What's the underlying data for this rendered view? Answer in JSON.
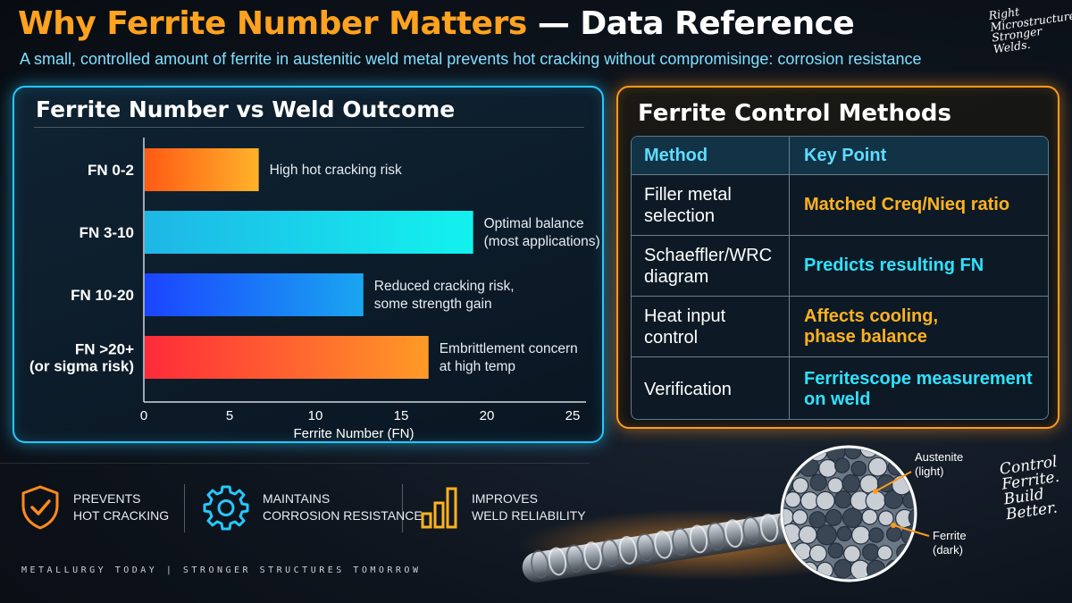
{
  "header": {
    "title_part1": "Why Ferrite Number Matters",
    "title_part2": "— Data Reference",
    "subtitle": "A small, controlled amount of ferrite in austenitic weld metal prevents hot cracking without compromisinge: corrosion resistance"
  },
  "taglines": {
    "top": [
      "Right",
      "Microstructure",
      "Stronger",
      "Welds."
    ],
    "bottom": [
      "Control",
      "Ferrite.",
      "Build",
      "Better."
    ]
  },
  "chart_data": {
    "type": "bar",
    "orientation": "horizontal",
    "title": "Ferrite Number vs Weld Outcome",
    "xlabel": "Ferrite Number (FN)",
    "ylabel": "",
    "xlim": [
      0,
      25
    ],
    "xticks": [
      0,
      5,
      10,
      15,
      20,
      25
    ],
    "categories": [
      {
        "label": [
          "FN 0-2"
        ],
        "value": 6.7,
        "note": [
          "High hot cracking risk"
        ],
        "colors": [
          "#ff5a14",
          "#ffb22a"
        ]
      },
      {
        "label": [
          "FN 3-10"
        ],
        "value": 19.2,
        "note": [
          "Optimal balance",
          "(most applications)"
        ],
        "colors": [
          "#1fb6e6",
          "#12f2ee"
        ]
      },
      {
        "label": [
          "FN 10-20"
        ],
        "value": 12.8,
        "note": [
          "Reduced cracking risk,",
          "some strength gain"
        ],
        "colors": [
          "#1b44ff",
          "#1aa6f0"
        ]
      },
      {
        "label": [
          "FN >20+",
          "(or sigma risk)"
        ],
        "value": 16.6,
        "note": [
          "Embrittlement concern",
          "at high temp"
        ],
        "colors": [
          "#ff2a3a",
          "#ff9a26"
        ]
      }
    ],
    "grid": false,
    "legend": "none"
  },
  "table": {
    "title": "Ferrite Control Methods",
    "headers": [
      "Method",
      "Key Point"
    ],
    "rows": [
      {
        "method": [
          "Filler metal",
          "selection"
        ],
        "point": [
          "Matched Creq/Nieq ratio"
        ],
        "color": "gold"
      },
      {
        "method": [
          "Schaeffler/WRC",
          "diagram"
        ],
        "point": [
          "Predicts resulting FN"
        ],
        "color": "cyan"
      },
      {
        "method": [
          "Heat input",
          "control"
        ],
        "point": [
          "Affects cooling,",
          "phase balance"
        ],
        "color": "gold"
      },
      {
        "method": [
          "Verification"
        ],
        "point": [
          "Ferritescope measurement",
          "on weld"
        ],
        "color": "cyan"
      }
    ]
  },
  "benefits": [
    {
      "icon": "shield-check-icon",
      "lines": [
        "PREVENTS",
        "HOT CRACKING"
      ]
    },
    {
      "icon": "gear-icon",
      "lines": [
        "MAINTAINS",
        "CORROSION RESISTANCE"
      ]
    },
    {
      "icon": "bar-chart-icon",
      "lines": [
        "IMPROVES",
        "WELD RELIABILITY"
      ]
    }
  ],
  "micrograph": {
    "austenite_label": [
      "Austenite",
      "(light)"
    ],
    "ferrite_label": [
      "Ferrite",
      "(dark)"
    ]
  },
  "footer": "METALLURGY TODAY  |  STRONGER STRUCTURES TOMORROW",
  "colors": {
    "accent_orange": "#ffa21f",
    "accent_cyan": "#27c8ff",
    "gold_text": "#ffb21f",
    "cyan_text": "#2fe2ff"
  }
}
